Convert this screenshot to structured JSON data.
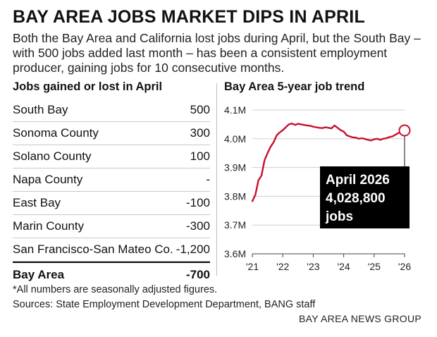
{
  "headline": "BAY AREA JOBS MARKET DIPS IN APRIL",
  "dek": "Both the Bay Area and California lost jobs during April, but the South Bay – with 500 jobs added last month – has been a consistent employment producer, gaining jobs for 10 consecutive months.",
  "table": {
    "title": "Jobs gained or lost in April",
    "rows": [
      {
        "label": "South Bay",
        "value": "500"
      },
      {
        "label": "Sonoma County",
        "value": "300"
      },
      {
        "label": "Solano County",
        "value": "100"
      },
      {
        "label": "Napa County",
        "value": "-"
      },
      {
        "label": "East Bay",
        "value": "-100"
      },
      {
        "label": "Marin County",
        "value": "-300"
      },
      {
        "label": "San Francisco-San Mateo Co.",
        "value": "-1,200"
      }
    ],
    "total": {
      "label": "Bay Area",
      "value": "-700"
    }
  },
  "chart_data": [
    {
      "type": "table",
      "title": "Jobs gained or lost in April",
      "categories": [
        "South Bay",
        "Sonoma County",
        "Solano County",
        "Napa County",
        "East Bay",
        "Marin County",
        "San Francisco-San Mateo Co.",
        "Bay Area"
      ],
      "values": [
        500,
        300,
        100,
        null,
        -100,
        -300,
        -1200,
        -700
      ]
    },
    {
      "type": "line",
      "title": "Bay Area 5-year job trend",
      "xlabel": "",
      "ylabel": "",
      "ylim": [
        3.6,
        4.1
      ],
      "xlim": [
        2021.0,
        2026.0
      ],
      "grid": true,
      "y_tick_labels": [
        "4.1M",
        "4.0M",
        "3.9M",
        "3.8M",
        "3.7M",
        "3.6M"
      ],
      "y_ticks": [
        4.1,
        4.0,
        3.9,
        3.8,
        3.7,
        3.6
      ],
      "x_tick_labels": [
        "'21",
        "'22",
        "'23",
        "'24",
        "'25",
        "'26"
      ],
      "x_ticks": [
        2021,
        2022,
        2023,
        2024,
        2025,
        2026
      ],
      "line_color": "#c8102e",
      "x": [
        2021.0,
        2021.1,
        2021.2,
        2021.3,
        2021.4,
        2021.5,
        2021.6,
        2021.7,
        2021.8,
        2021.9,
        2022.0,
        2022.1,
        2022.2,
        2022.3,
        2022.4,
        2022.5,
        2022.6,
        2022.7,
        2022.8,
        2022.9,
        2023.0,
        2023.1,
        2023.2,
        2023.3,
        2023.4,
        2023.5,
        2023.6,
        2023.7,
        2023.8,
        2023.9,
        2024.0,
        2024.1,
        2024.2,
        2024.3,
        2024.4,
        2024.5,
        2024.6,
        2024.7,
        2024.8,
        2024.9,
        2025.0,
        2025.1,
        2025.2,
        2025.3,
        2025.4,
        2025.5,
        2025.6,
        2025.7,
        2025.8,
        2025.9,
        2026.0
      ],
      "y": [
        3.783,
        3.805,
        3.855,
        3.872,
        3.925,
        3.95,
        3.972,
        3.988,
        4.012,
        4.022,
        4.03,
        4.04,
        4.05,
        4.053,
        4.048,
        4.052,
        4.05,
        4.048,
        4.046,
        4.045,
        4.042,
        4.04,
        4.038,
        4.037,
        4.04,
        4.038,
        4.036,
        4.046,
        4.038,
        4.03,
        4.025,
        4.012,
        4.008,
        4.005,
        4.004,
        4.0,
        4.002,
        3.999,
        3.996,
        3.994,
        3.998,
        4.0,
        3.996,
        4.0,
        4.002,
        4.006,
        4.008,
        4.014,
        4.02,
        4.024,
        4.0288
      ],
      "annotation": {
        "line1": "April 2026",
        "line2": "4,028,800",
        "line3": "jobs",
        "x": 2026.0,
        "y": 4.0288
      }
    }
  ],
  "footnote": "*All numbers are seasonally adjusted figures.",
  "sources": "Sources: State Employment Development Department, BANG staff",
  "credit": "BAY AREA NEWS GROUP"
}
